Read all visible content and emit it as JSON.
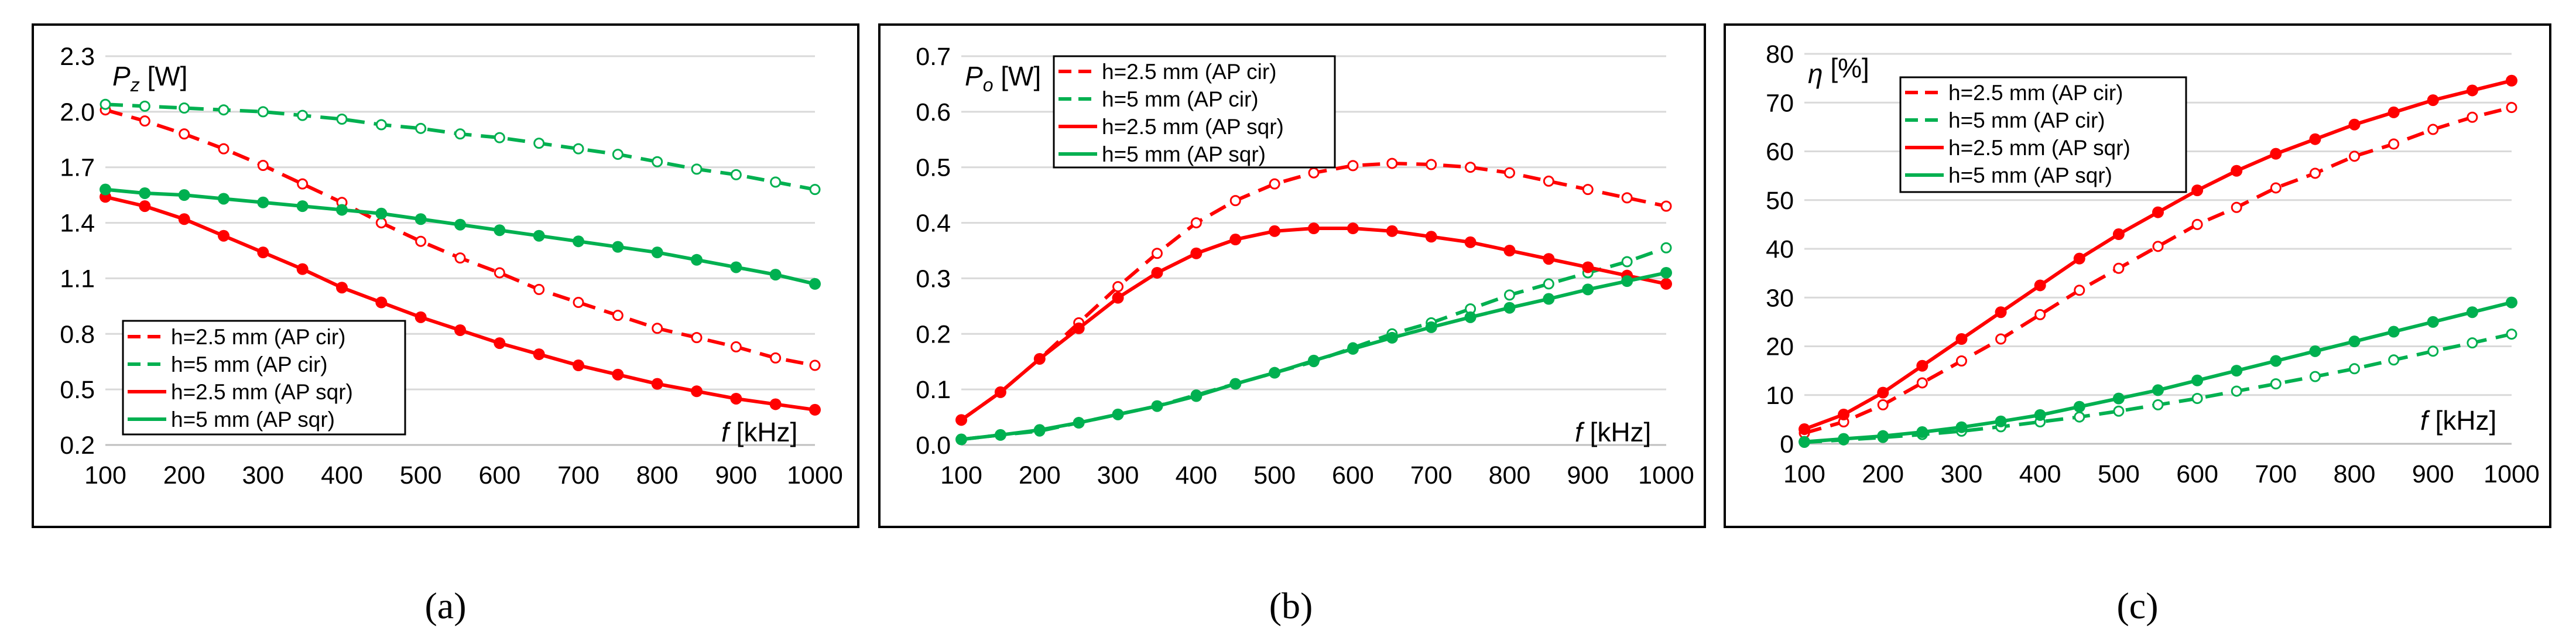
{
  "colors": {
    "red": "#ff0000",
    "green": "#00b050"
  },
  "chart_data": [
    {
      "id": "a",
      "type": "line",
      "caption": "(a)",
      "ylabel_sym": "P",
      "ylabel_sub": "z",
      "ylabel_unit": " [W]",
      "xlabel_sym": "f",
      "xlabel_unit": " [kHz]",
      "xlim": [
        100,
        1000
      ],
      "ylim": [
        0.2,
        2.3
      ],
      "xticks": [
        100,
        200,
        300,
        400,
        500,
        600,
        700,
        800,
        900,
        1000
      ],
      "yticks": [
        "0.2",
        "0.5",
        "0.8",
        "1.1",
        "1.4",
        "1.7",
        "2.0",
        "2.3"
      ],
      "x": [
        100,
        150,
        200,
        250,
        300,
        350,
        400,
        450,
        500,
        550,
        600,
        650,
        700,
        750,
        800,
        850,
        900,
        950,
        1000
      ],
      "series": [
        {
          "name": "h=2.5 mm (AP cir)",
          "color": "red",
          "dashed": true,
          "values": [
            2.01,
            1.95,
            1.88,
            1.8,
            1.71,
            1.61,
            1.51,
            1.4,
            1.3,
            1.21,
            1.13,
            1.04,
            0.97,
            0.9,
            0.83,
            0.78,
            0.73,
            0.67,
            0.63
          ]
        },
        {
          "name": "h=5 mm (AP cir)",
          "color": "green",
          "dashed": true,
          "values": [
            2.04,
            2.03,
            2.02,
            2.01,
            2.0,
            1.98,
            1.96,
            1.93,
            1.91,
            1.88,
            1.86,
            1.83,
            1.8,
            1.77,
            1.73,
            1.69,
            1.66,
            1.62,
            1.58
          ]
        },
        {
          "name": "h=2.5 mm (AP sqr)",
          "color": "red",
          "dashed": false,
          "values": [
            1.54,
            1.49,
            1.42,
            1.33,
            1.24,
            1.15,
            1.05,
            0.97,
            0.89,
            0.82,
            0.75,
            0.69,
            0.63,
            0.58,
            0.53,
            0.49,
            0.45,
            0.42,
            0.39
          ]
        },
        {
          "name": "h=5 mm (AP sqr)",
          "color": "green",
          "dashed": false,
          "values": [
            1.58,
            1.56,
            1.55,
            1.53,
            1.51,
            1.49,
            1.47,
            1.45,
            1.42,
            1.39,
            1.36,
            1.33,
            1.3,
            1.27,
            1.24,
            1.2,
            1.16,
            1.12,
            1.07
          ]
        }
      ],
      "legend": "bottom-left"
    },
    {
      "id": "b",
      "type": "line",
      "caption": "(b)",
      "ylabel_sym": "P",
      "ylabel_sub": "o",
      "ylabel_unit": " [W]",
      "xlabel_sym": "f",
      "xlabel_unit": " [kHz]",
      "xlim": [
        100,
        1000
      ],
      "ylim": [
        0.0,
        0.7
      ],
      "xticks": [
        100,
        200,
        300,
        400,
        500,
        600,
        700,
        800,
        900,
        1000
      ],
      "yticks": [
        "0.0",
        "0.1",
        "0.2",
        "0.3",
        "0.4",
        "0.5",
        "0.6",
        "0.7"
      ],
      "x": [
        100,
        150,
        200,
        250,
        300,
        350,
        400,
        450,
        500,
        550,
        600,
        650,
        700,
        750,
        800,
        850,
        900,
        950,
        1000
      ],
      "series": [
        {
          "name": "h=2.5 mm (AP cir)",
          "color": "red",
          "dashed": true,
          "values": [
            0.045,
            0.095,
            0.155,
            0.22,
            0.285,
            0.345,
            0.4,
            0.44,
            0.47,
            0.49,
            0.503,
            0.507,
            0.505,
            0.5,
            0.49,
            0.475,
            0.46,
            0.445,
            0.43
          ]
        },
        {
          "name": "h=5 mm (AP cir)",
          "color": "green",
          "dashed": true,
          "values": [
            0.01,
            0.018,
            0.025,
            0.04,
            0.055,
            0.07,
            0.09,
            0.11,
            0.13,
            0.15,
            0.175,
            0.2,
            0.22,
            0.245,
            0.27,
            0.29,
            0.31,
            0.33,
            0.355
          ]
        },
        {
          "name": "h=2.5 mm (AP sqr)",
          "color": "red",
          "dashed": false,
          "values": [
            0.045,
            0.095,
            0.155,
            0.21,
            0.265,
            0.31,
            0.345,
            0.37,
            0.385,
            0.39,
            0.39,
            0.385,
            0.375,
            0.365,
            0.35,
            0.335,
            0.32,
            0.305,
            0.29
          ]
        },
        {
          "name": "h=5 mm (AP sqr)",
          "color": "green",
          "dashed": false,
          "values": [
            0.01,
            0.018,
            0.027,
            0.04,
            0.055,
            0.07,
            0.088,
            0.11,
            0.13,
            0.152,
            0.173,
            0.193,
            0.212,
            0.23,
            0.247,
            0.263,
            0.28,
            0.295,
            0.31
          ]
        }
      ],
      "legend": "top-left"
    },
    {
      "id": "c",
      "type": "line",
      "caption": "(c)",
      "ylabel_sym": "η",
      "ylabel_sub": "",
      "ylabel_unit": " [%]",
      "xlabel_sym": "f",
      "xlabel_unit": " [kHz]",
      "xlim": [
        100,
        1000
      ],
      "ylim": [
        0,
        80
      ],
      "xticks": [
        100,
        200,
        300,
        400,
        500,
        600,
        700,
        800,
        900,
        1000
      ],
      "yticks": [
        "0",
        "10",
        "20",
        "30",
        "40",
        "50",
        "60",
        "70",
        "80"
      ],
      "x": [
        100,
        150,
        200,
        250,
        300,
        350,
        400,
        450,
        500,
        550,
        600,
        650,
        700,
        750,
        800,
        850,
        900,
        950,
        1000
      ],
      "series": [
        {
          "name": "h=2.5 mm (AP cir)",
          "color": "red",
          "dashed": true,
          "values": [
            2.2,
            4.5,
            8.0,
            12.5,
            17.0,
            21.5,
            26.5,
            31.5,
            36.0,
            40.5,
            45.0,
            48.5,
            52.5,
            55.5,
            59.0,
            61.5,
            64.5,
            67.0,
            69.0
          ]
        },
        {
          "name": "h=5 mm (AP cir)",
          "color": "green",
          "dashed": true,
          "values": [
            0.3,
            0.8,
            1.3,
            1.9,
            2.6,
            3.5,
            4.5,
            5.5,
            6.7,
            8.0,
            9.3,
            10.8,
            12.3,
            13.8,
            15.4,
            17.2,
            19.0,
            20.7,
            22.5
          ]
        },
        {
          "name": "h=2.5 mm (AP sqr)",
          "color": "red",
          "dashed": false,
          "values": [
            3.0,
            6.0,
            10.5,
            16.0,
            21.5,
            27.0,
            32.5,
            38.0,
            43.0,
            47.5,
            52.0,
            56.0,
            59.5,
            62.5,
            65.5,
            68.0,
            70.5,
            72.5,
            74.5
          ]
        },
        {
          "name": "h=5 mm (AP sqr)",
          "color": "green",
          "dashed": false,
          "values": [
            0.4,
            1.0,
            1.6,
            2.4,
            3.4,
            4.6,
            5.9,
            7.6,
            9.3,
            11.0,
            13.0,
            15.0,
            17.0,
            19.0,
            21.0,
            23.0,
            25.0,
            27.0,
            29.0
          ]
        }
      ],
      "legend": "top-left"
    }
  ]
}
